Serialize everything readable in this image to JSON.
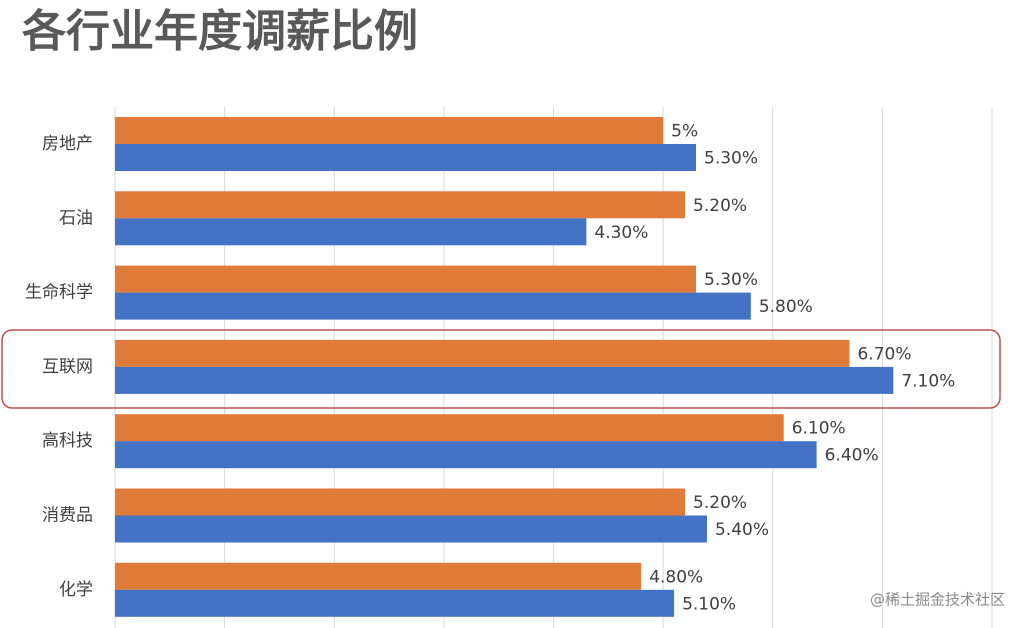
{
  "chart_data": {
    "type": "hbar",
    "title": "各行业年度调薪比例",
    "categories": [
      "房地产",
      "石油",
      "生命科学",
      "互联网",
      "高科技",
      "消费品",
      "化学"
    ],
    "series": [
      {
        "color": "#e07b39",
        "values": [
          5,
          5.2,
          5.3,
          6.7,
          6.1,
          5.2,
          4.8
        ],
        "value_labels": [
          "5%",
          "5.20%",
          "5.30%",
          "6.70%",
          "6.10%",
          "5.20%",
          "4.80%"
        ]
      },
      {
        "color": "#4472c4",
        "values": [
          5.3,
          4.3,
          5.8,
          7.1,
          6.4,
          5.4,
          5.1
        ],
        "value_labels": [
          "5.30%",
          "4.30%",
          "5.80%",
          "7.10%",
          "6.40%",
          "5.40%",
          "5.10%"
        ]
      }
    ],
    "xlim": [
      0,
      8
    ],
    "xticks": [
      0,
      1,
      2,
      3,
      4,
      5,
      6,
      7,
      8
    ],
    "xtick_labels": false,
    "grid": true,
    "watermark": "@稀土掘金技术社区"
  }
}
